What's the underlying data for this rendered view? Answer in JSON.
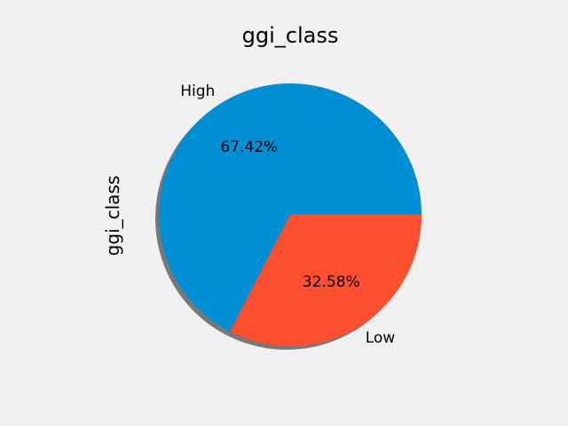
{
  "chart_data": {
    "type": "pie",
    "title": "ggi_class",
    "ylabel": "ggi_class",
    "shadow": true,
    "start_angle_deg": 0,
    "direction": "counterclockwise",
    "slices": [
      {
        "label": "High",
        "value": 67.42,
        "pct_label": "67.42%",
        "color": "#008fd5"
      },
      {
        "label": "Low",
        "value": 32.58,
        "pct_label": "32.58%",
        "color": "#fc4f30"
      }
    ]
  }
}
